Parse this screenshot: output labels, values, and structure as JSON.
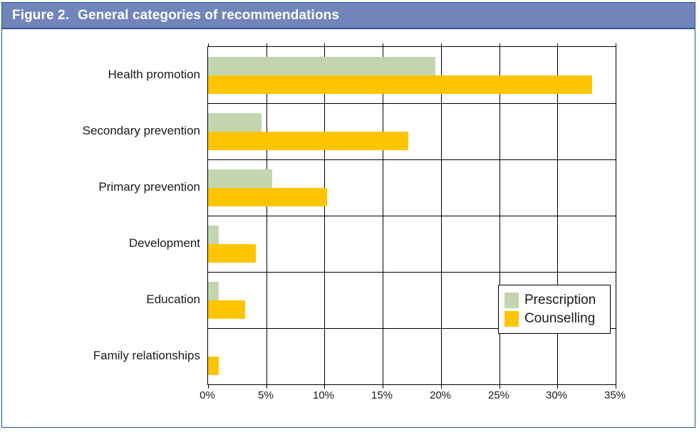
{
  "header": {
    "figure_label": "Figure 2.",
    "title": "General categories of recommendations"
  },
  "chart_data": {
    "type": "bar",
    "orientation": "horizontal",
    "title": "Figure 2. General categories of recommendations",
    "categories": [
      "Health promotion",
      "Secondary prevention",
      "Primary prevention",
      "Development",
      "Education",
      "Family relationships"
    ],
    "series": [
      {
        "name": "Prescription",
        "color": "#c3d5ae",
        "values": [
          19.5,
          4.6,
          5.5,
          0.9,
          0.9,
          0
        ]
      },
      {
        "name": "Counselling",
        "color": "#fdc500",
        "values": [
          33,
          17.2,
          10.2,
          4.1,
          3.2,
          0.9
        ]
      }
    ],
    "x_axis": {
      "ticks": [
        "0%",
        "5%",
        "10%",
        "15%",
        "20%",
        "25%",
        "30%",
        "35%"
      ],
      "min": 0,
      "max": 35,
      "step": 5
    },
    "grid": true,
    "legend_position": "inside-right-lower"
  },
  "colors": {
    "header_bg": "#7285ba",
    "header_border": "#2a549c",
    "frame_border": "#15568d",
    "plot_line": "#000000",
    "prescription": "#c3d5ae",
    "counselling": "#fdc500"
  }
}
